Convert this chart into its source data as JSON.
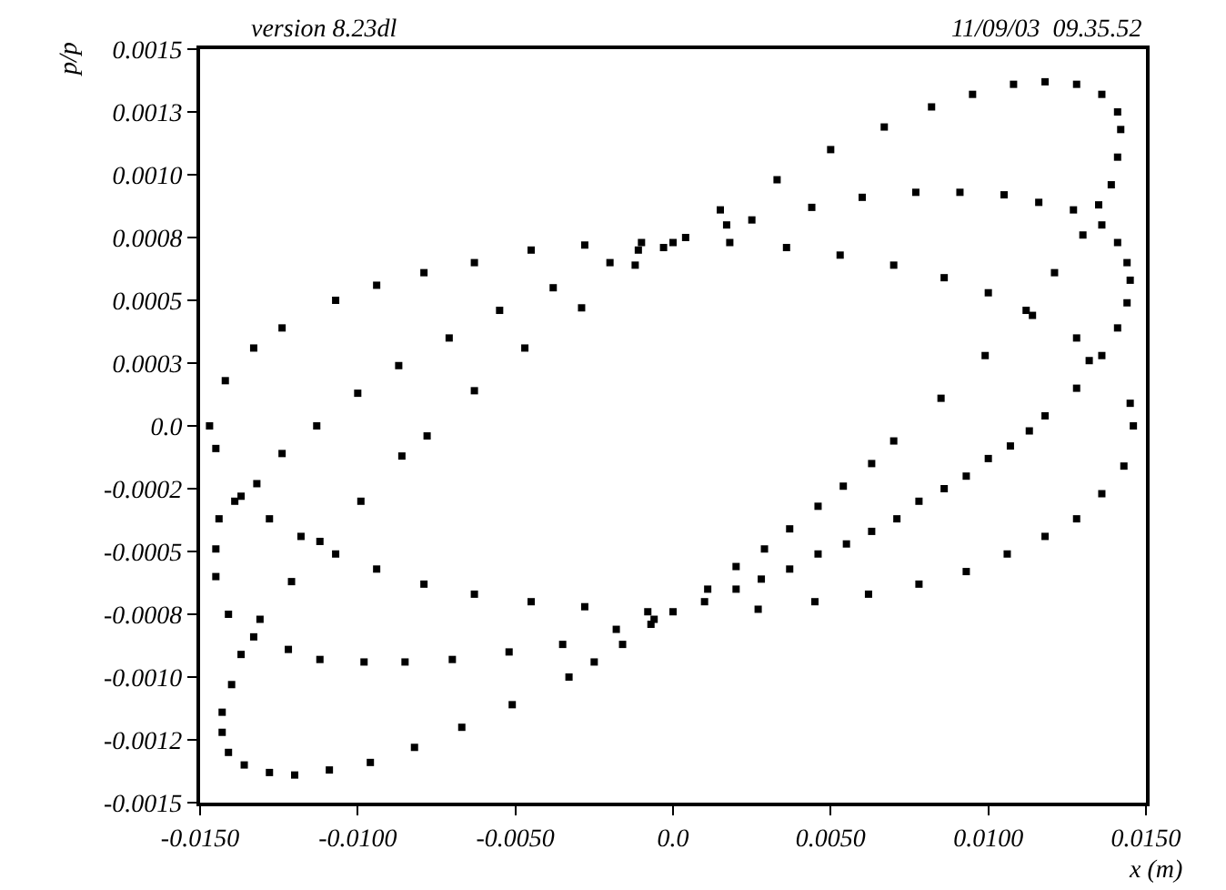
{
  "chart_data": {
    "type": "scatter",
    "xlabel": "x (m)",
    "ylabel": "p/p",
    "marker": "square",
    "annotations": [
      "version 8.23dl",
      "11/09/03  09.35.52"
    ],
    "xlim": [
      -0.015,
      0.015
    ],
    "ylim": [
      -0.0015,
      0.0015
    ],
    "xticks": [
      {
        "value": -0.015,
        "label": "-0.0150"
      },
      {
        "value": -0.01,
        "label": "-0.0100"
      },
      {
        "value": -0.005,
        "label": "-0.0050"
      },
      {
        "value": 0,
        "label": "0.0"
      },
      {
        "value": 0.005,
        "label": "0.0050"
      },
      {
        "value": 0.01,
        "label": "0.0100"
      },
      {
        "value": 0.015,
        "label": "0.0150"
      }
    ],
    "yticks": [
      {
        "value": -0.0015,
        "label": "-0.0015"
      },
      {
        "value": -0.00125,
        "label": "-0.0012"
      },
      {
        "value": -0.001,
        "label": "-0.0010"
      },
      {
        "value": -0.00075,
        "label": "-0.0008"
      },
      {
        "value": -0.0005,
        "label": "-0.0005"
      },
      {
        "value": -0.00025,
        "label": "-0.0002"
      },
      {
        "value": 0,
        "label": "0.0"
      },
      {
        "value": 0.00025,
        "label": "0.0003"
      },
      {
        "value": 0.0005,
        "label": "0.0005"
      },
      {
        "value": 0.00075,
        "label": "0.0008"
      },
      {
        "value": 0.001,
        "label": "0.0010"
      },
      {
        "value": 0.00125,
        "label": "0.0013"
      },
      {
        "value": 0.0015,
        "label": "0.0015"
      }
    ],
    "series": [
      {
        "color": "#000000",
        "x": [
          -0.0147,
          -0.0142,
          -0.0133,
          -0.0124,
          -0.0107,
          -0.0094,
          -0.0079,
          -0.0063,
          -0.0045,
          -0.0028,
          -0.001,
          0.0,
          0.0018,
          0.0036,
          0.0053,
          0.007,
          0.0086,
          0.01,
          0.0114,
          0.0128,
          0.0136,
          0.0145,
          0.0146,
          0.0143,
          0.0136,
          0.0128,
          0.0118,
          0.0106,
          0.0093,
          0.0078,
          0.0062,
          0.0045,
          0.0027,
          0.0,
          -0.0008,
          -0.0028,
          -0.0045,
          -0.0063,
          -0.0079,
          -0.0094,
          -0.0107,
          -0.0118,
          -0.0128,
          -0.0137,
          -0.0145
        ],
        "values": [
          0.0,
          0.00018,
          0.00031,
          0.00039,
          0.0005,
          0.00056,
          0.00061,
          0.00065,
          0.0007,
          0.00072,
          0.00073,
          0.00073,
          0.00073,
          0.00071,
          0.00068,
          0.00064,
          0.00059,
          0.00053,
          0.00044,
          0.00035,
          0.00028,
          9e-05,
          0.0,
          -0.00016,
          -0.00027,
          -0.00037,
          -0.00044,
          -0.00051,
          -0.00058,
          -0.00063,
          -0.00067,
          -0.0007,
          -0.00073,
          -0.00074,
          -0.00074,
          -0.00072,
          -0.0007,
          -0.00067,
          -0.00063,
          -0.00057,
          -0.00051,
          -0.00044,
          -0.00037,
          -0.00028,
          -9e-05
        ]
      },
      {
        "color": "#000000",
        "x": [
          0.0015,
          0.0033,
          0.005,
          0.0067,
          0.0082,
          0.0095,
          0.0108,
          0.0118,
          0.0128,
          0.0136,
          0.0141,
          0.0142,
          0.0141,
          0.0139,
          0.0135,
          0.013,
          0.0121,
          0.0112,
          0.0099,
          0.0085,
          0.007,
          0.0063,
          0.0054,
          0.0046,
          0.0037,
          0.0029,
          0.002,
          0.0011,
          -0.0007,
          -0.0016,
          -0.0025,
          -0.0033,
          -0.0051,
          -0.0067,
          -0.0082,
          -0.0096,
          -0.0109,
          -0.012,
          -0.0128,
          -0.0136,
          -0.0141,
          -0.0143,
          -0.0143,
          -0.014,
          -0.0137,
          -0.0131,
          -0.0121,
          -0.0112,
          -0.0099,
          -0.0086,
          -0.0078,
          -0.0063,
          -0.0047,
          -0.0029,
          -0.0012,
          -0.0003
        ],
        "values": [
          0.00086,
          0.00098,
          0.0011,
          0.00119,
          0.00127,
          0.00132,
          0.00136,
          0.00137,
          0.00136,
          0.00132,
          0.00125,
          0.00118,
          0.00107,
          0.00096,
          0.00088,
          0.00076,
          0.00061,
          0.00046,
          0.00028,
          0.00011,
          -6e-05,
          -0.00015,
          -0.00024,
          -0.00032,
          -0.00041,
          -0.00049,
          -0.00056,
          -0.00065,
          -0.00079,
          -0.00087,
          -0.00094,
          -0.001,
          -0.00111,
          -0.0012,
          -0.00128,
          -0.00134,
          -0.00137,
          -0.00139,
          -0.00138,
          -0.00135,
          -0.0013,
          -0.00122,
          -0.00114,
          -0.00103,
          -0.00091,
          -0.00077,
          -0.00062,
          -0.00046,
          -0.0003,
          -0.00012,
          -4e-05,
          0.00014,
          0.00031,
          0.00047,
          0.00064,
          0.00071
        ]
      },
      {
        "color": "#000000",
        "x": [
          0.0004,
          0.0017,
          0.0025,
          0.0044,
          0.006,
          0.0077,
          0.0091,
          0.0105,
          0.0116,
          0.0127,
          0.0136,
          0.0141,
          0.0144,
          0.0145,
          0.0144,
          0.0141,
          0.0132,
          0.0128,
          0.0118,
          0.0113,
          0.0107,
          0.01,
          0.0093,
          0.0086,
          0.0078,
          0.0071,
          0.0063,
          0.0055,
          0.0046,
          0.0037,
          0.0028,
          0.002,
          0.001,
          -0.0006,
          -0.0018,
          -0.0035,
          -0.0052,
          -0.007,
          -0.0085,
          -0.0098,
          -0.0112,
          -0.0122,
          -0.0133,
          -0.0141,
          -0.0145,
          -0.0145,
          -0.0144,
          -0.0139,
          -0.0132,
          -0.0124,
          -0.0113,
          -0.01,
          -0.0087,
          -0.0071,
          -0.0055,
          -0.0038,
          -0.002,
          -0.0011
        ],
        "values": [
          0.00075,
          0.0008,
          0.00082,
          0.00087,
          0.00091,
          0.00093,
          0.00093,
          0.00092,
          0.00089,
          0.00086,
          0.0008,
          0.00073,
          0.00065,
          0.00058,
          0.00049,
          0.00039,
          0.00026,
          0.00015,
          4e-05,
          -2e-05,
          -8e-05,
          -0.00013,
          -0.0002,
          -0.00025,
          -0.0003,
          -0.00037,
          -0.00042,
          -0.00047,
          -0.00051,
          -0.00057,
          -0.00061,
          -0.00065,
          -0.0007,
          -0.00077,
          -0.00081,
          -0.00087,
          -0.0009,
          -0.00093,
          -0.00094,
          -0.00094,
          -0.00093,
          -0.00089,
          -0.00084,
          -0.00075,
          -0.0006,
          -0.00049,
          -0.00037,
          -0.0003,
          -0.00023,
          -0.00011,
          0.0,
          0.00013,
          0.00024,
          0.00035,
          0.00046,
          0.00055,
          0.00065,
          0.0007
        ]
      }
    ]
  }
}
